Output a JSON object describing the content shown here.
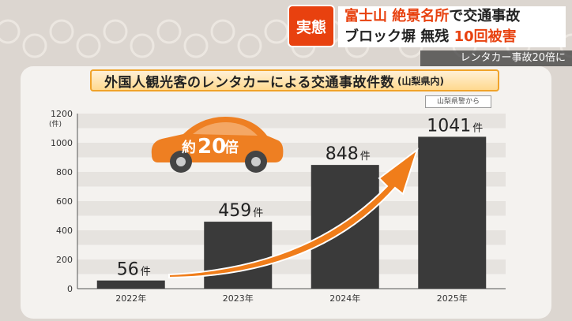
{
  "headline": {
    "tag": "実態",
    "line1_a": "富士山 絶景名所",
    "line1_b": "で交通事故",
    "line2_a": "ブロック塀 無残",
    "line2_b": "10回被害"
  },
  "ticker": "レンタカー事故20倍に",
  "source": "山梨県警から",
  "callout": {
    "prefix": "約",
    "value": "20",
    "suffix": "倍"
  },
  "colors": {
    "bar": "#3a3a3a",
    "arrow": "#f07d1a",
    "car": "#ee7f22",
    "accent": "#e8410f"
  },
  "chart_data": {
    "type": "bar",
    "title": "外国人観光客のレンタカーによる交通事故件数",
    "subtitle": "(山梨県内)",
    "ylabel": "(件)",
    "categories": [
      "2022年",
      "2023年",
      "2024年",
      "2025年"
    ],
    "values": [
      56,
      459,
      848,
      1041
    ],
    "value_unit": "件",
    "ylim": [
      0,
      1200
    ],
    "yticks": [
      0,
      200,
      400,
      600,
      800,
      1000,
      1200
    ],
    "grid": true,
    "legend": "none"
  }
}
